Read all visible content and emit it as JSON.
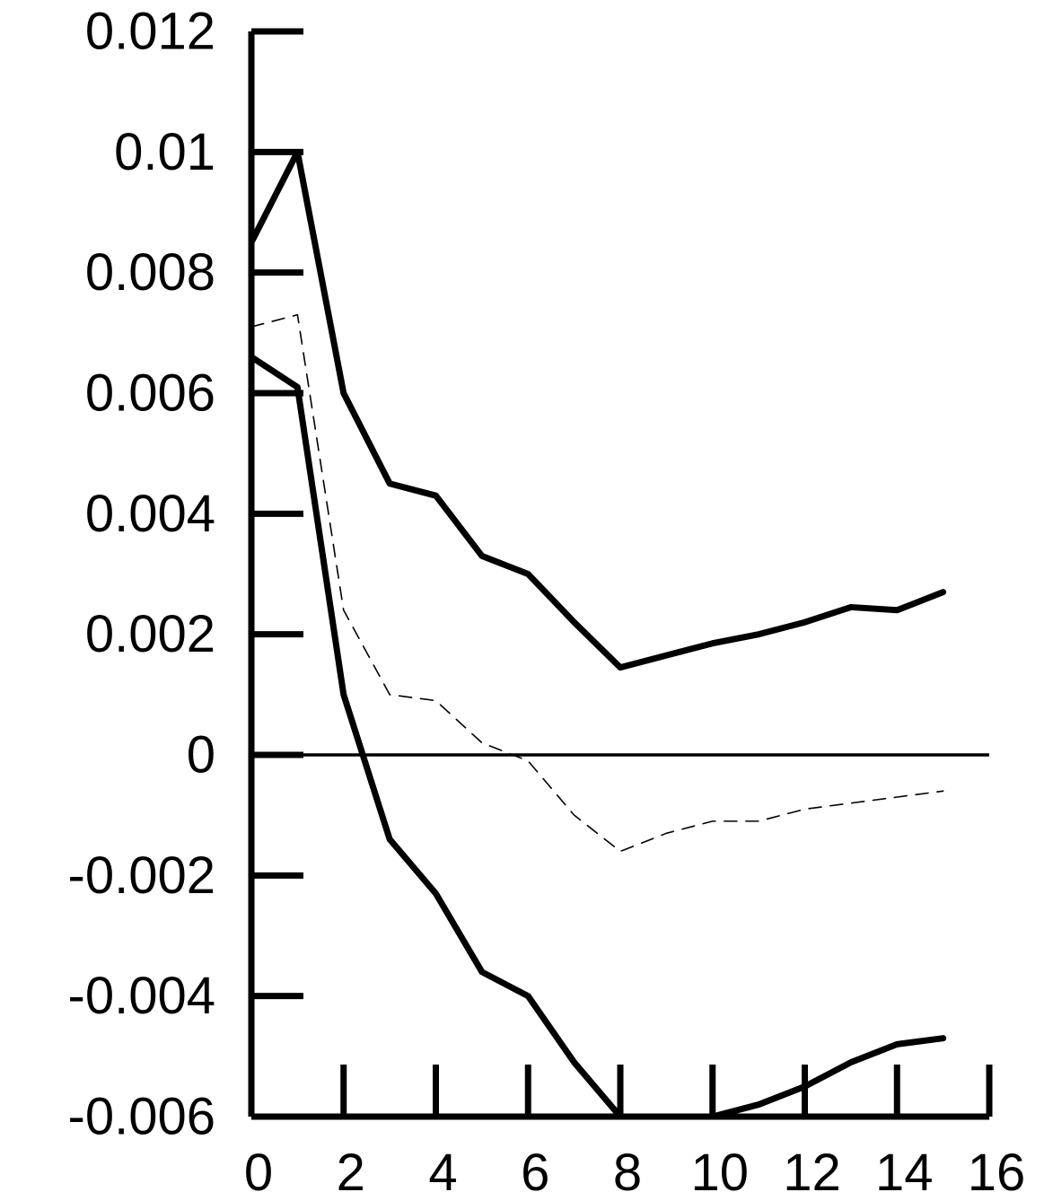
{
  "chart_data": {
    "type": "line",
    "title": "",
    "xlabel": "",
    "ylabel": "",
    "xlim": [
      0,
      16
    ],
    "ylim": [
      -0.006,
      0.012
    ],
    "x_ticks": [
      0,
      2,
      4,
      6,
      8,
      10,
      12,
      14,
      16
    ],
    "x_tick_labels": [
      "0",
      "2",
      "4",
      "6",
      "8",
      "10",
      "12",
      "14",
      "16"
    ],
    "y_ticks": [
      -0.006,
      -0.004,
      -0.002,
      0,
      0.002,
      0.004,
      0.006,
      0.008,
      0.01,
      0.012
    ],
    "y_tick_labels": [
      "-0.006",
      "-0.004",
      "-0.002",
      "0",
      "0.002",
      "0.004",
      "0.006",
      "0.008",
      "0.01",
      "0.012"
    ],
    "grid": false,
    "zero_line": true,
    "x": [
      0,
      1,
      2,
      3,
      4,
      5,
      6,
      7,
      8,
      9,
      10,
      11,
      12,
      13,
      14,
      15
    ],
    "series": [
      {
        "style": "solid-thick",
        "color": "#000000",
        "values": [
          0.0085,
          0.01,
          0.006,
          0.0045,
          0.0043,
          0.0033,
          0.003,
          0.0022,
          0.00145,
          0.00165,
          0.00185,
          0.002,
          0.0022,
          0.00245,
          0.0024,
          0.0027
        ]
      },
      {
        "style": "dashed-thin",
        "color": "#000000",
        "values": [
          0.0071,
          0.0073,
          0.0024,
          0.001,
          0.0009,
          0.0002,
          -0.0001,
          -0.001,
          -0.0016,
          -0.0013,
          -0.0011,
          -0.0011,
          -0.0009,
          -0.0008,
          -0.0007,
          -0.0006
        ]
      },
      {
        "style": "solid-thick",
        "color": "#000000",
        "values": [
          0.0066,
          0.0061,
          0.001,
          -0.0014,
          -0.0023,
          -0.0036,
          -0.004,
          -0.0051,
          -0.006,
          -0.006,
          -0.006,
          -0.0058,
          -0.0055,
          -0.0051,
          -0.0048,
          -0.0047
        ]
      }
    ]
  }
}
